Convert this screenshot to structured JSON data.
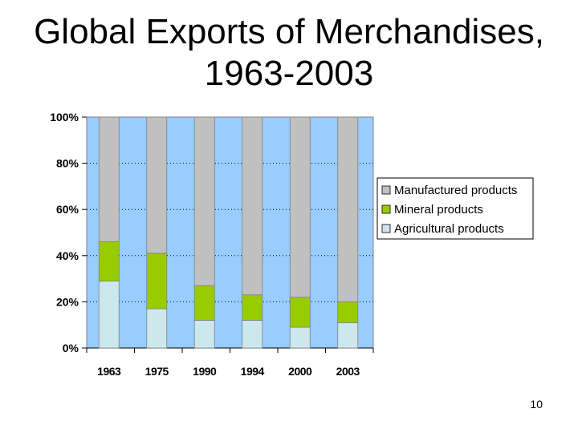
{
  "slide": {
    "title_line1": "Global Exports of Merchandises,",
    "title_line2": "1963-2003",
    "page_number": "10"
  },
  "chart_data": {
    "type": "bar",
    "stacked": true,
    "normalized": "percent",
    "categories": [
      "1963",
      "1975",
      "1990",
      "1994",
      "2000",
      "2003"
    ],
    "series": [
      {
        "name": "Agricultural products",
        "color": "#cce8ec",
        "values": [
          29,
          17,
          12,
          12,
          9,
          11
        ]
      },
      {
        "name": "Mineral products",
        "color": "#99cc00",
        "values": [
          17,
          24,
          15,
          11,
          13,
          9
        ]
      },
      {
        "name": "Manufactured products",
        "color": "#c0c0c0",
        "values": [
          54,
          59,
          73,
          77,
          78,
          80
        ]
      }
    ],
    "ylim": [
      0,
      100
    ],
    "yticks": [
      "0%",
      "20%",
      "40%",
      "60%",
      "80%",
      "100%"
    ],
    "plot_background": "#99ccff",
    "grid": "dotted horizontal",
    "legend_position": "right",
    "legend_order": [
      "Manufactured products",
      "Mineral products",
      "Agricultural products"
    ]
  }
}
